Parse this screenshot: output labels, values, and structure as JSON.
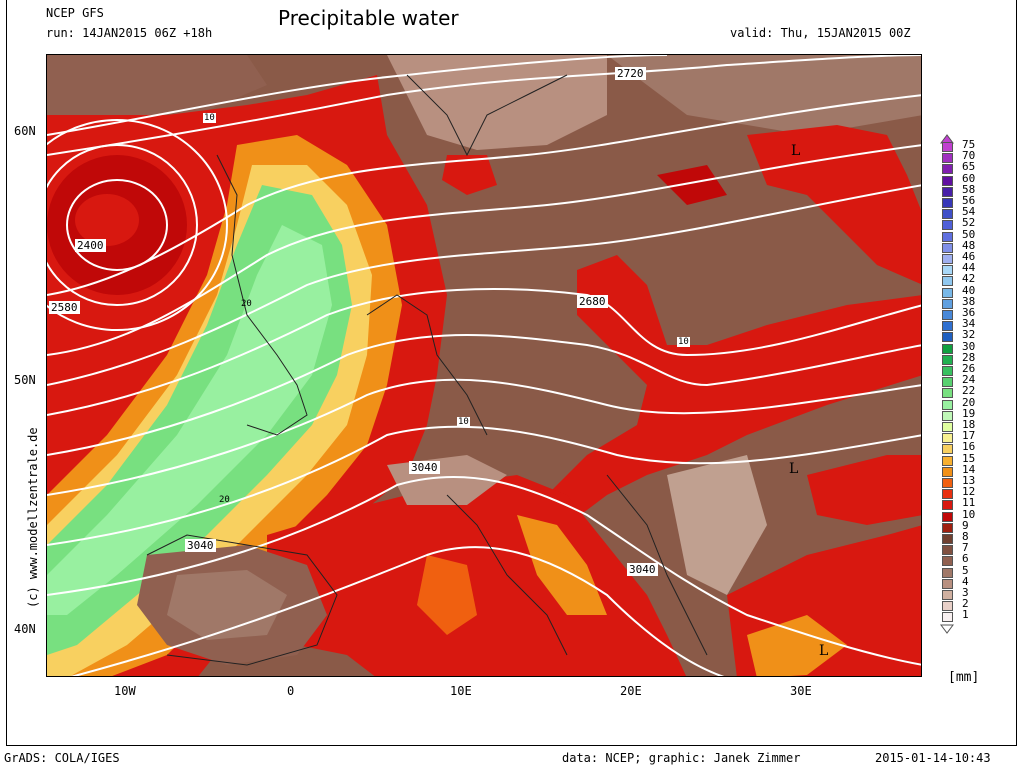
{
  "header": {
    "model": "NCEP GFS",
    "run": "run: 14JAN2015 06Z +18h",
    "title": "Precipitable water",
    "valid": "valid: Thu, 15JAN2015 00Z"
  },
  "axes": {
    "lat_labels": [
      "60N",
      "50N",
      "40N"
    ],
    "lon_labels": [
      "10W",
      "0",
      "10E",
      "20E",
      "30E"
    ]
  },
  "contour_labels": [
    "2720",
    "2400",
    "2580",
    "2680",
    "3040",
    "3040",
    "3040",
    "10",
    "20"
  ],
  "pressure_markers": [
    "L",
    "L",
    "L"
  ],
  "credit": "(c) www.modellzentrale.de",
  "colorbar": {
    "unit": "[mm]",
    "labels": [
      "75",
      "70",
      "65",
      "60",
      "58",
      "56",
      "54",
      "52",
      "50",
      "48",
      "46",
      "44",
      "42",
      "40",
      "38",
      "36",
      "34",
      "32",
      "30",
      "28",
      "26",
      "24",
      "22",
      "20",
      "19",
      "18",
      "17",
      "16",
      "15",
      "14",
      "13",
      "12",
      "11",
      "10",
      "9",
      "8",
      "7",
      "6",
      "5",
      "4",
      "3",
      "2",
      "1"
    ],
    "colors": [
      "#c040d0",
      "#a030c0",
      "#8020b0",
      "#6010a0",
      "#4820a8",
      "#3838b8",
      "#4050c8",
      "#5060d8",
      "#6070e0",
      "#8090e8",
      "#9fb0f0",
      "#a8d8f8",
      "#90c8f0",
      "#78b8e8",
      "#60a0e0",
      "#4888d8",
      "#3070d0",
      "#2060c0",
      "#10a040",
      "#20b050",
      "#38c060",
      "#58d070",
      "#78e080",
      "#98f0a0",
      "#c0f8b8",
      "#e0ffa0",
      "#f8f090",
      "#f8d060",
      "#f8b030",
      "#f09018",
      "#f06010",
      "#e83010",
      "#d81810",
      "#c00808",
      "#a02010",
      "#704030",
      "#805040",
      "#906050",
      "#a07868",
      "#b89080",
      "#d0b0a0",
      "#e8d0c8",
      "#f8f0f0"
    ]
  },
  "footer": {
    "left": "GrADS: COLA/IGES",
    "data": "data: NCEP; graphic: Janek Zimmer",
    "timestamp": "2015-01-14-10:43"
  }
}
